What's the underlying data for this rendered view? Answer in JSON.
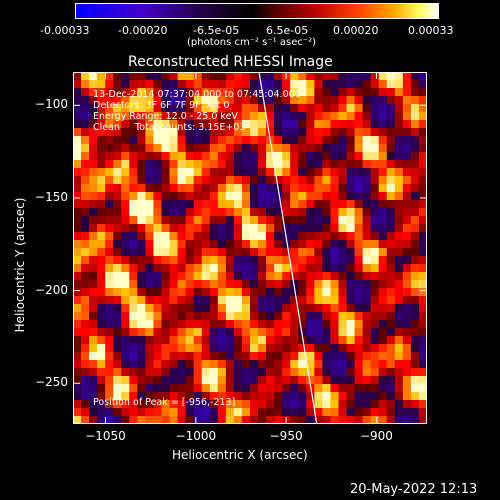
{
  "colorbar": {
    "ticks": [
      "-0.00033",
      "-0.00020",
      "-6.5e-05",
      "6.5e-05",
      "0.00020",
      "0.00033"
    ],
    "unit_label": "(photons cm⁻² s⁻¹ asec⁻²)",
    "colors": [
      "#0000ff",
      "#5500aa",
      "#000000",
      "#aa0000",
      "#ff6600",
      "#ffdd00",
      "#ffffff"
    ]
  },
  "chart_data": {
    "type": "heatmap",
    "title": "Reconstructed RHESSI Image",
    "xlabel": "Heliocentric X (arcsec)",
    "ylabel": "Heliocentric Y (arcsec)",
    "xlim": [
      -1068,
      -872
    ],
    "ylim": [
      -272,
      -82
    ],
    "xticks": [
      -1050,
      -1000,
      -950,
      -900
    ],
    "yticks": [
      -100,
      -150,
      -200,
      -250
    ],
    "color_range": [
      -0.00033,
      0.00033
    ],
    "limb_line": {
      "x": [
        -965,
        -933
      ],
      "y": [
        -82,
        -272
      ]
    },
    "peak_position": [
      -956,
      -213
    ],
    "annotations": [
      "13-Dec-2014 07:37:04.000 to 07:45:04.000",
      "Detectors: 3F 6F 7F 9F, Att 0",
      "Energy Range: 12.0 - 25.0 keV",
      "Clean     Total counts: 3.15E+03",
      "Position of Peak = [-956,-213]"
    ]
  },
  "footer": {
    "date": "20-May-2022 12:13"
  }
}
